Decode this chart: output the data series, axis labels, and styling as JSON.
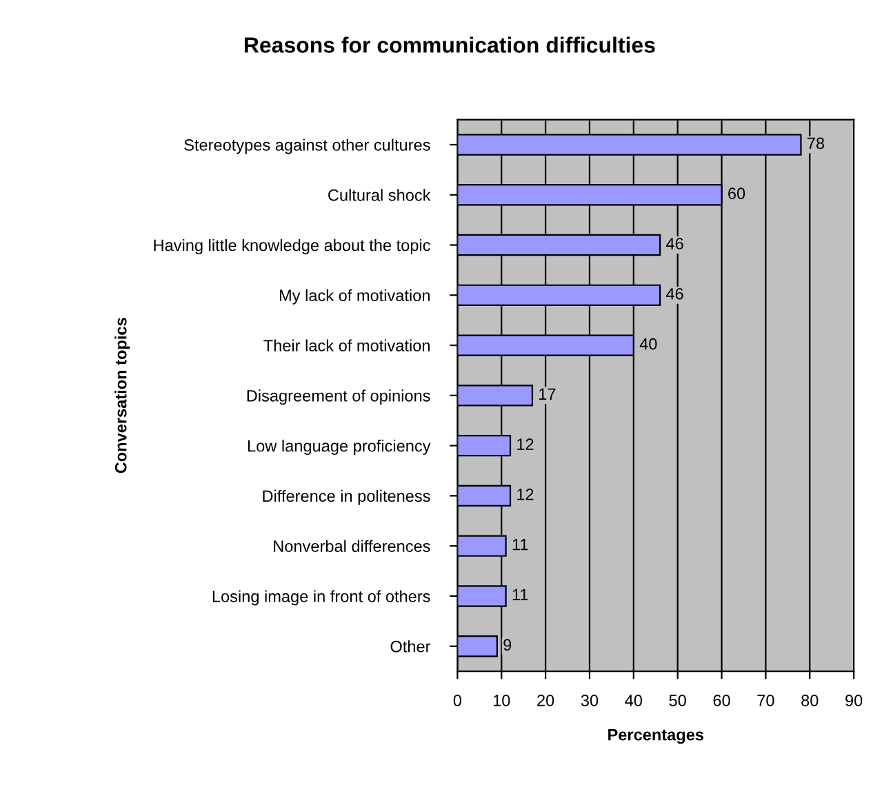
{
  "chart_data": {
    "type": "bar",
    "orientation": "horizontal",
    "title": "Reasons for communication difficulties",
    "xlabel": "Percentages",
    "ylabel": "Conversation topics",
    "categories": [
      "Stereotypes against other cultures",
      "Cultural shock",
      "Having little knowledge about the topic",
      "My lack of motivation",
      "Their lack of motivation",
      "Disagreement of opinions",
      "Low language proficiency",
      "Difference in politeness",
      "Nonverbal differences",
      "Losing image in front of others",
      "Other"
    ],
    "values": [
      78,
      60,
      46,
      46,
      40,
      17,
      12,
      12,
      11,
      11,
      9
    ],
    "color": "#9999ff",
    "xlim": [
      0,
      90
    ],
    "xticks": [
      0,
      10,
      20,
      30,
      40,
      50,
      60,
      70,
      80,
      90
    ],
    "grid": "x",
    "data_labels": true
  }
}
